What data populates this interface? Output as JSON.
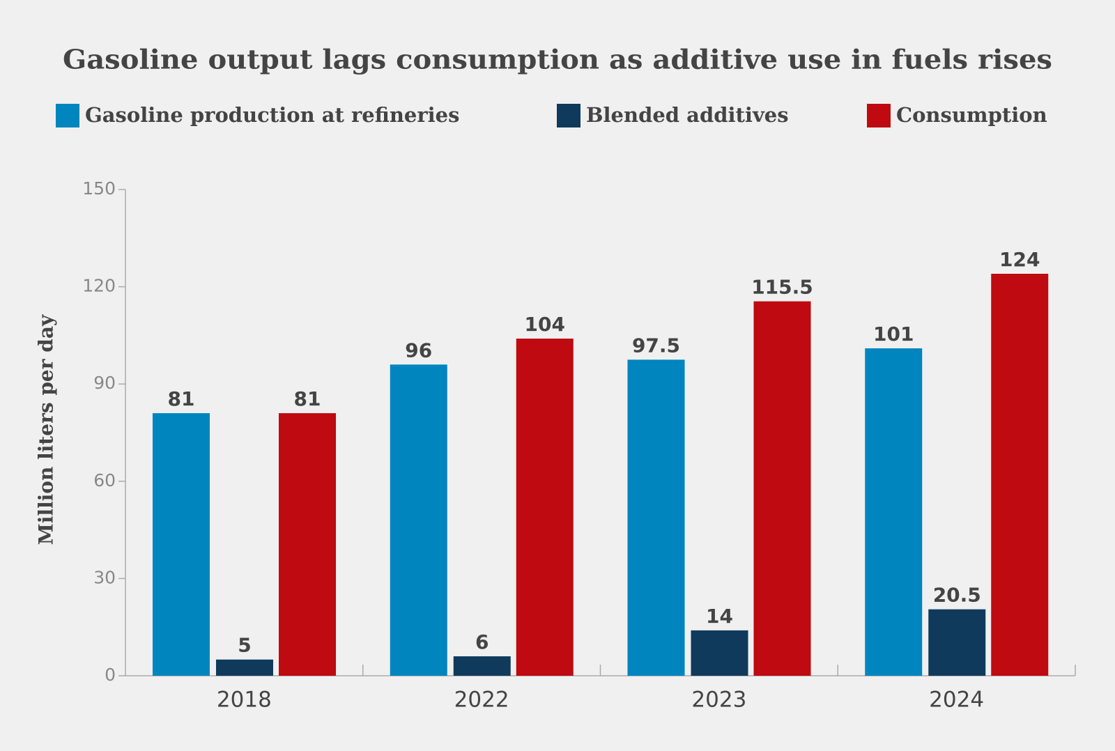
{
  "chart_data": {
    "type": "bar",
    "title": "Gasoline output lags consumption as additive use in fuels rises",
    "y_label": "Million liters per day",
    "categories": [
      "2018",
      "2022",
      "2023",
      "2024"
    ],
    "series": [
      {
        "name": "Gasoline production at refineries",
        "color": "#0085be",
        "values": [
          81,
          96,
          97.5,
          101
        ]
      },
      {
        "name": "Blended additives",
        "color": "#0f3a5c",
        "values": [
          5,
          6,
          14,
          20.5
        ]
      },
      {
        "name": "Consumption",
        "color": "#be0a10",
        "values": [
          81,
          104,
          115.5,
          124
        ]
      }
    ],
    "ylim": [
      0,
      150
    ],
    "yticks": [
      0,
      30,
      60,
      90,
      120,
      150
    ],
    "grid": false
  }
}
